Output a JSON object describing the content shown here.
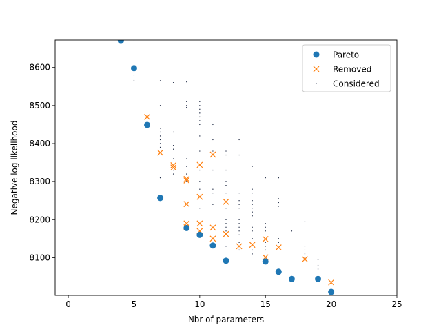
{
  "chart_data": {
    "type": "scatter",
    "title": "",
    "xlabel": "Nbr of parameters",
    "ylabel": "Negative log likelihood",
    "xlim": [
      -1,
      25
    ],
    "ylim": [
      8001,
      8672
    ],
    "xticks": [
      0,
      5,
      10,
      15,
      20,
      25
    ],
    "yticks": [
      8100,
      8200,
      8300,
      8400,
      8500,
      8600
    ],
    "grid": false,
    "legend_position": "top-right",
    "series": [
      {
        "name": "Pareto",
        "marker": "circle",
        "color": "#1f77b4",
        "points": [
          [
            4,
            8670
          ],
          [
            5,
            8598
          ],
          [
            6,
            8449
          ],
          [
            7,
            8257
          ],
          [
            9,
            8178
          ],
          [
            10,
            8160
          ],
          [
            11,
            8132
          ],
          [
            12,
            8092
          ],
          [
            15,
            8090
          ],
          [
            16,
            8063
          ],
          [
            17,
            8044
          ],
          [
            19,
            8044
          ],
          [
            20,
            8010
          ]
        ]
      },
      {
        "name": "Removed",
        "marker": "x",
        "color": "#ff7f0e",
        "points": [
          [
            6,
            8470
          ],
          [
            7,
            8376
          ],
          [
            8,
            8343
          ],
          [
            8,
            8337
          ],
          [
            9,
            8307
          ],
          [
            9,
            8303
          ],
          [
            10,
            8344
          ],
          [
            11,
            8371
          ],
          [
            10,
            8260
          ],
          [
            9,
            8241
          ],
          [
            12,
            8247
          ],
          [
            9,
            8190
          ],
          [
            9,
            8180
          ],
          [
            10,
            8190
          ],
          [
            10,
            8170
          ],
          [
            11,
            8179
          ],
          [
            11,
            8150
          ],
          [
            12,
            8162
          ],
          [
            13,
            8130
          ],
          [
            14,
            8134
          ],
          [
            15,
            8149
          ],
          [
            15,
            8101
          ],
          [
            16,
            8127
          ],
          [
            18,
            8096
          ],
          [
            20,
            8035
          ]
        ]
      },
      {
        "name": "Considered",
        "marker": "point",
        "color": "#1f2a44",
        "points": [
          [
            5,
            8593
          ],
          [
            5,
            8580
          ],
          [
            5,
            8566
          ],
          [
            5,
            8672
          ],
          [
            7,
            8565
          ],
          [
            7,
            8500
          ],
          [
            7,
            8440
          ],
          [
            7,
            8430
          ],
          [
            7,
            8420
          ],
          [
            7,
            8410
          ],
          [
            7,
            8400
          ],
          [
            7,
            8390
          ],
          [
            7,
            8310
          ],
          [
            8,
            8560
          ],
          [
            8,
            8430
          ],
          [
            8,
            8395
          ],
          [
            8,
            8385
          ],
          [
            8,
            8360
          ],
          [
            8,
            8330
          ],
          [
            8,
            8320
          ],
          [
            9,
            8562
          ],
          [
            9,
            8510
          ],
          [
            9,
            8500
          ],
          [
            9,
            8495
          ],
          [
            9,
            8360
          ],
          [
            9,
            8340
          ],
          [
            9,
            8320
          ],
          [
            9,
            8300
          ],
          [
            10,
            8510
          ],
          [
            10,
            8500
          ],
          [
            10,
            8490
          ],
          [
            10,
            8480
          ],
          [
            10,
            8470
          ],
          [
            10,
            8460
          ],
          [
            10,
            8450
          ],
          [
            10,
            8420
          ],
          [
            10,
            8380
          ],
          [
            10,
            8330
          ],
          [
            10,
            8300
          ],
          [
            10,
            8280
          ],
          [
            10,
            8230
          ],
          [
            11,
            8450
          ],
          [
            11,
            8410
          ],
          [
            11,
            8380
          ],
          [
            11,
            8330
          ],
          [
            11,
            8280
          ],
          [
            11,
            8270
          ],
          [
            11,
            8240
          ],
          [
            12,
            8380
          ],
          [
            12,
            8370
          ],
          [
            12,
            8330
          ],
          [
            12,
            8300
          ],
          [
            12,
            8290
          ],
          [
            12,
            8270
          ],
          [
            12,
            8230
          ],
          [
            12,
            8200
          ],
          [
            12,
            8190
          ],
          [
            12,
            8180
          ],
          [
            12,
            8170
          ],
          [
            12,
            8160
          ],
          [
            12,
            8130
          ],
          [
            13,
            8410
          ],
          [
            13,
            8370
          ],
          [
            13,
            8270
          ],
          [
            13,
            8250
          ],
          [
            13,
            8240
          ],
          [
            13,
            8230
          ],
          [
            13,
            8200
          ],
          [
            13,
            8190
          ],
          [
            13,
            8180
          ],
          [
            13,
            8170
          ],
          [
            13,
            8160
          ],
          [
            13,
            8140
          ],
          [
            13,
            8120
          ],
          [
            14,
            8340
          ],
          [
            14,
            8280
          ],
          [
            14,
            8270
          ],
          [
            14,
            8250
          ],
          [
            14,
            8240
          ],
          [
            14,
            8230
          ],
          [
            14,
            8220
          ],
          [
            14,
            8210
          ],
          [
            14,
            8180
          ],
          [
            14,
            8170
          ],
          [
            14,
            8150
          ],
          [
            14,
            8120
          ],
          [
            14,
            8110
          ],
          [
            15,
            8310
          ],
          [
            15,
            8190
          ],
          [
            15,
            8180
          ],
          [
            15,
            8170
          ],
          [
            15,
            8140
          ],
          [
            15,
            8130
          ],
          [
            15,
            8120
          ],
          [
            16,
            8310
          ],
          [
            16,
            8255
          ],
          [
            16,
            8245
          ],
          [
            16,
            8235
          ],
          [
            16,
            8150
          ],
          [
            16,
            8140
          ],
          [
            17,
            8170
          ],
          [
            18,
            8195
          ],
          [
            18,
            8130
          ],
          [
            18,
            8120
          ],
          [
            18,
            8110
          ],
          [
            18,
            8100
          ],
          [
            19,
            8095
          ],
          [
            19,
            8080
          ],
          [
            19,
            8070
          ]
        ]
      }
    ]
  }
}
